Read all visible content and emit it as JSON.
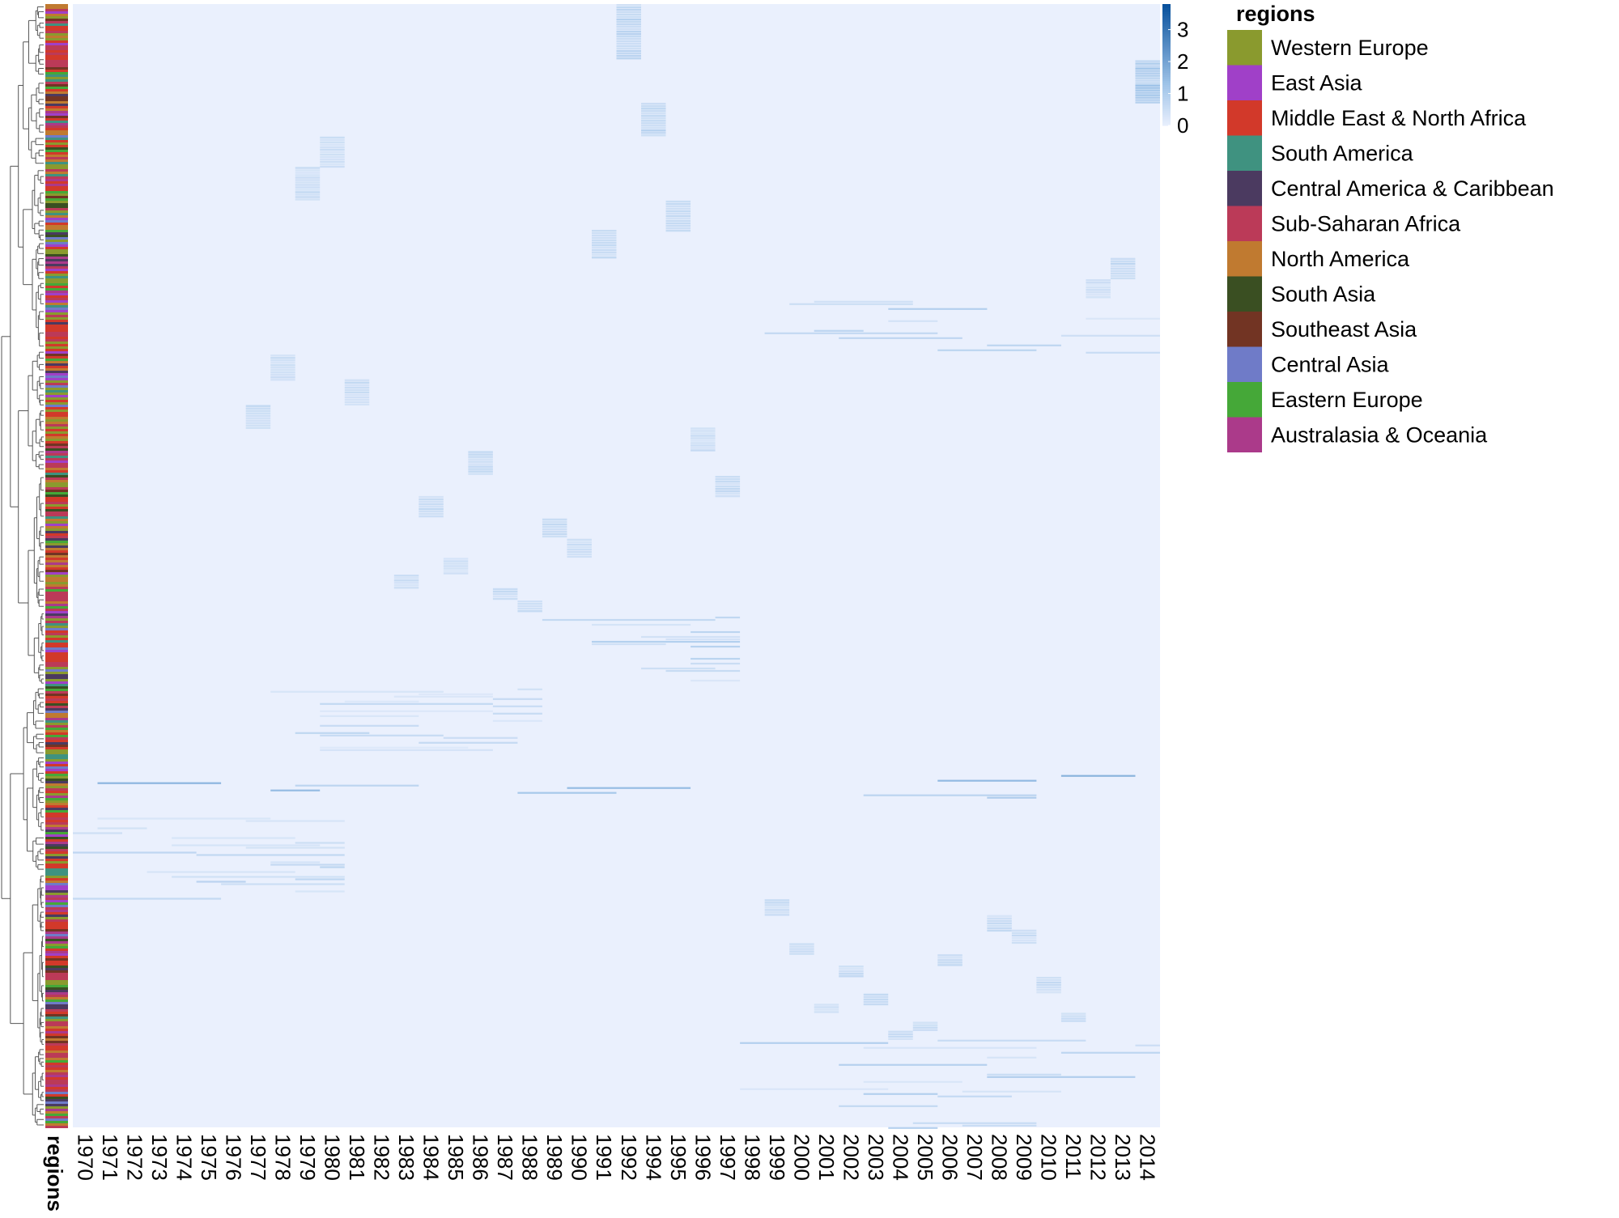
{
  "chart_data": {
    "type": "heatmap",
    "title": "",
    "xlabel": "",
    "ylabel": "",
    "x": [
      "1970",
      "1971",
      "1972",
      "1973",
      "1974",
      "1975",
      "1976",
      "1977",
      "1978",
      "1979",
      "1980",
      "1981",
      "1982",
      "1983",
      "1984",
      "1985",
      "1986",
      "1987",
      "1988",
      "1989",
      "1990",
      "1991",
      "1992",
      "1994",
      "1995",
      "1996",
      "1997",
      "1998",
      "1999",
      "2000",
      "2001",
      "2002",
      "2003",
      "2004",
      "2005",
      "2006",
      "2007",
      "2008",
      "2009",
      "2010",
      "2011",
      "2012",
      "2013",
      "2014"
    ],
    "color_scale": {
      "min": 0,
      "max": 3.8,
      "ticks": [
        0,
        1,
        2,
        3
      ],
      "low_color": "#eaf0fd",
      "mid_color": "#9ec3e8",
      "high_color": "#08519c"
    },
    "row_annotation": {
      "label": "regions",
      "legend_title": "regions",
      "categories": [
        {
          "name": "Western Europe",
          "color": "#8a9a2e"
        },
        {
          "name": "East Asia",
          "color": "#a040c8"
        },
        {
          "name": "Middle East & North Africa",
          "color": "#d2392a"
        },
        {
          "name": "South America",
          "color": "#3f9280"
        },
        {
          "name": "Central America & Caribbean",
          "color": "#4b3a60"
        },
        {
          "name": "Sub-Saharan Africa",
          "color": "#bb3a58"
        },
        {
          "name": "North America",
          "color": "#c07a30"
        },
        {
          "name": "South Asia",
          "color": "#3a4f22"
        },
        {
          "name": "Southeast Asia",
          "color": "#723423"
        },
        {
          "name": "Central Asia",
          "color": "#6f7bc8"
        },
        {
          "name": "Eastern Europe",
          "color": "#45a838"
        },
        {
          "name": "Australasia & Oceania",
          "color": "#ab3a8a"
        }
      ]
    },
    "dendrogram": "rows",
    "legend_position": "right",
    "highlighted_blocks": [
      {
        "year": "1992",
        "row_from": 0.0,
        "row_to": 0.048,
        "value": 0.8
      },
      {
        "year": "2014",
        "row_from": 0.05,
        "row_to": 0.088,
        "value": 1.2
      },
      {
        "year": "1994",
        "row_from": 0.088,
        "row_to": 0.118,
        "value": 0.8
      },
      {
        "year": "1980",
        "row_from": 0.118,
        "row_to": 0.145,
        "value": 0.5
      },
      {
        "year": "1979",
        "row_from": 0.145,
        "row_to": 0.175,
        "value": 0.6
      },
      {
        "year": "1995",
        "row_from": 0.175,
        "row_to": 0.201,
        "value": 0.6
      },
      {
        "year": "1991",
        "row_from": 0.201,
        "row_to": 0.226,
        "value": 0.7
      },
      {
        "year": "2013",
        "row_from": 0.226,
        "row_to": 0.245,
        "value": 0.7
      },
      {
        "year": "2012",
        "row_from": 0.245,
        "row_to": 0.262,
        "value": 0.5
      },
      {
        "year": "1978",
        "row_from": 0.312,
        "row_to": 0.334,
        "value": 0.6
      },
      {
        "year": "1981",
        "row_from": 0.334,
        "row_to": 0.356,
        "value": 0.6
      },
      {
        "year": "1977",
        "row_from": 0.357,
        "row_to": 0.377,
        "value": 0.6
      },
      {
        "year": "1996",
        "row_from": 0.377,
        "row_to": 0.398,
        "value": 0.6
      },
      {
        "year": "1986",
        "row_from": 0.398,
        "row_to": 0.418,
        "value": 0.6
      },
      {
        "year": "1997",
        "row_from": 0.42,
        "row_to": 0.438,
        "value": 0.6
      },
      {
        "year": "1984",
        "row_from": 0.438,
        "row_to": 0.456,
        "value": 0.7
      },
      {
        "year": "1989",
        "row_from": 0.458,
        "row_to": 0.474,
        "value": 0.6
      },
      {
        "year": "1990",
        "row_from": 0.476,
        "row_to": 0.492,
        "value": 0.6
      },
      {
        "year": "1985",
        "row_from": 0.493,
        "row_to": 0.506,
        "value": 0.5
      },
      {
        "year": "1983",
        "row_from": 0.508,
        "row_to": 0.52,
        "value": 0.6
      },
      {
        "year": "1987",
        "row_from": 0.52,
        "row_to": 0.53,
        "value": 0.6
      },
      {
        "year": "1988",
        "row_from": 0.531,
        "row_to": 0.541,
        "value": 0.6
      },
      {
        "year": "1999",
        "row_from": 0.797,
        "row_to": 0.811,
        "value": 0.6
      },
      {
        "year": "2008",
        "row_from": 0.811,
        "row_to": 0.824,
        "value": 0.6
      },
      {
        "year": "2009",
        "row_from": 0.824,
        "row_to": 0.836,
        "value": 0.6
      },
      {
        "year": "2000",
        "row_from": 0.836,
        "row_to": 0.846,
        "value": 0.6
      },
      {
        "year": "2006",
        "row_from": 0.846,
        "row_to": 0.856,
        "value": 0.6
      },
      {
        "year": "2002",
        "row_from": 0.856,
        "row_to": 0.866,
        "value": 0.6
      },
      {
        "year": "2010",
        "row_from": 0.866,
        "row_to": 0.881,
        "value": 0.6
      },
      {
        "year": "2003",
        "row_from": 0.881,
        "row_to": 0.89,
        "value": 0.6
      },
      {
        "year": "2001",
        "row_from": 0.89,
        "row_to": 0.898,
        "value": 0.6
      },
      {
        "year": "2011",
        "row_from": 0.898,
        "row_to": 0.906,
        "value": 0.6
      },
      {
        "year": "2005",
        "row_from": 0.906,
        "row_to": 0.914,
        "value": 0.6
      },
      {
        "year": "2004",
        "row_from": 0.914,
        "row_to": 0.922,
        "value": 0.6
      }
    ],
    "highlighted_bands": [
      {
        "from_year": "1998",
        "to_year": "2014",
        "row_from": 0.262,
        "row_to": 0.312,
        "value": 0.8
      },
      {
        "from_year": "1989",
        "to_year": "1997",
        "row_from": 0.541,
        "row_to": 0.605,
        "value": 0.8
      },
      {
        "from_year": "1978",
        "to_year": "1988",
        "row_from": 0.605,
        "row_to": 0.665,
        "value": 0.6
      },
      {
        "from_year": "1970",
        "to_year": "2014",
        "row_from": 0.682,
        "row_to": 0.712,
        "value": 1.5
      },
      {
        "from_year": "1970",
        "to_year": "1980",
        "row_from": 0.72,
        "row_to": 0.797,
        "value": 0.7
      },
      {
        "from_year": "1998",
        "to_year": "2014",
        "row_from": 0.922,
        "row_to": 1.0,
        "value": 0.8
      }
    ]
  },
  "labels": {
    "regions_axis": "regions",
    "legend_title": "regions"
  }
}
